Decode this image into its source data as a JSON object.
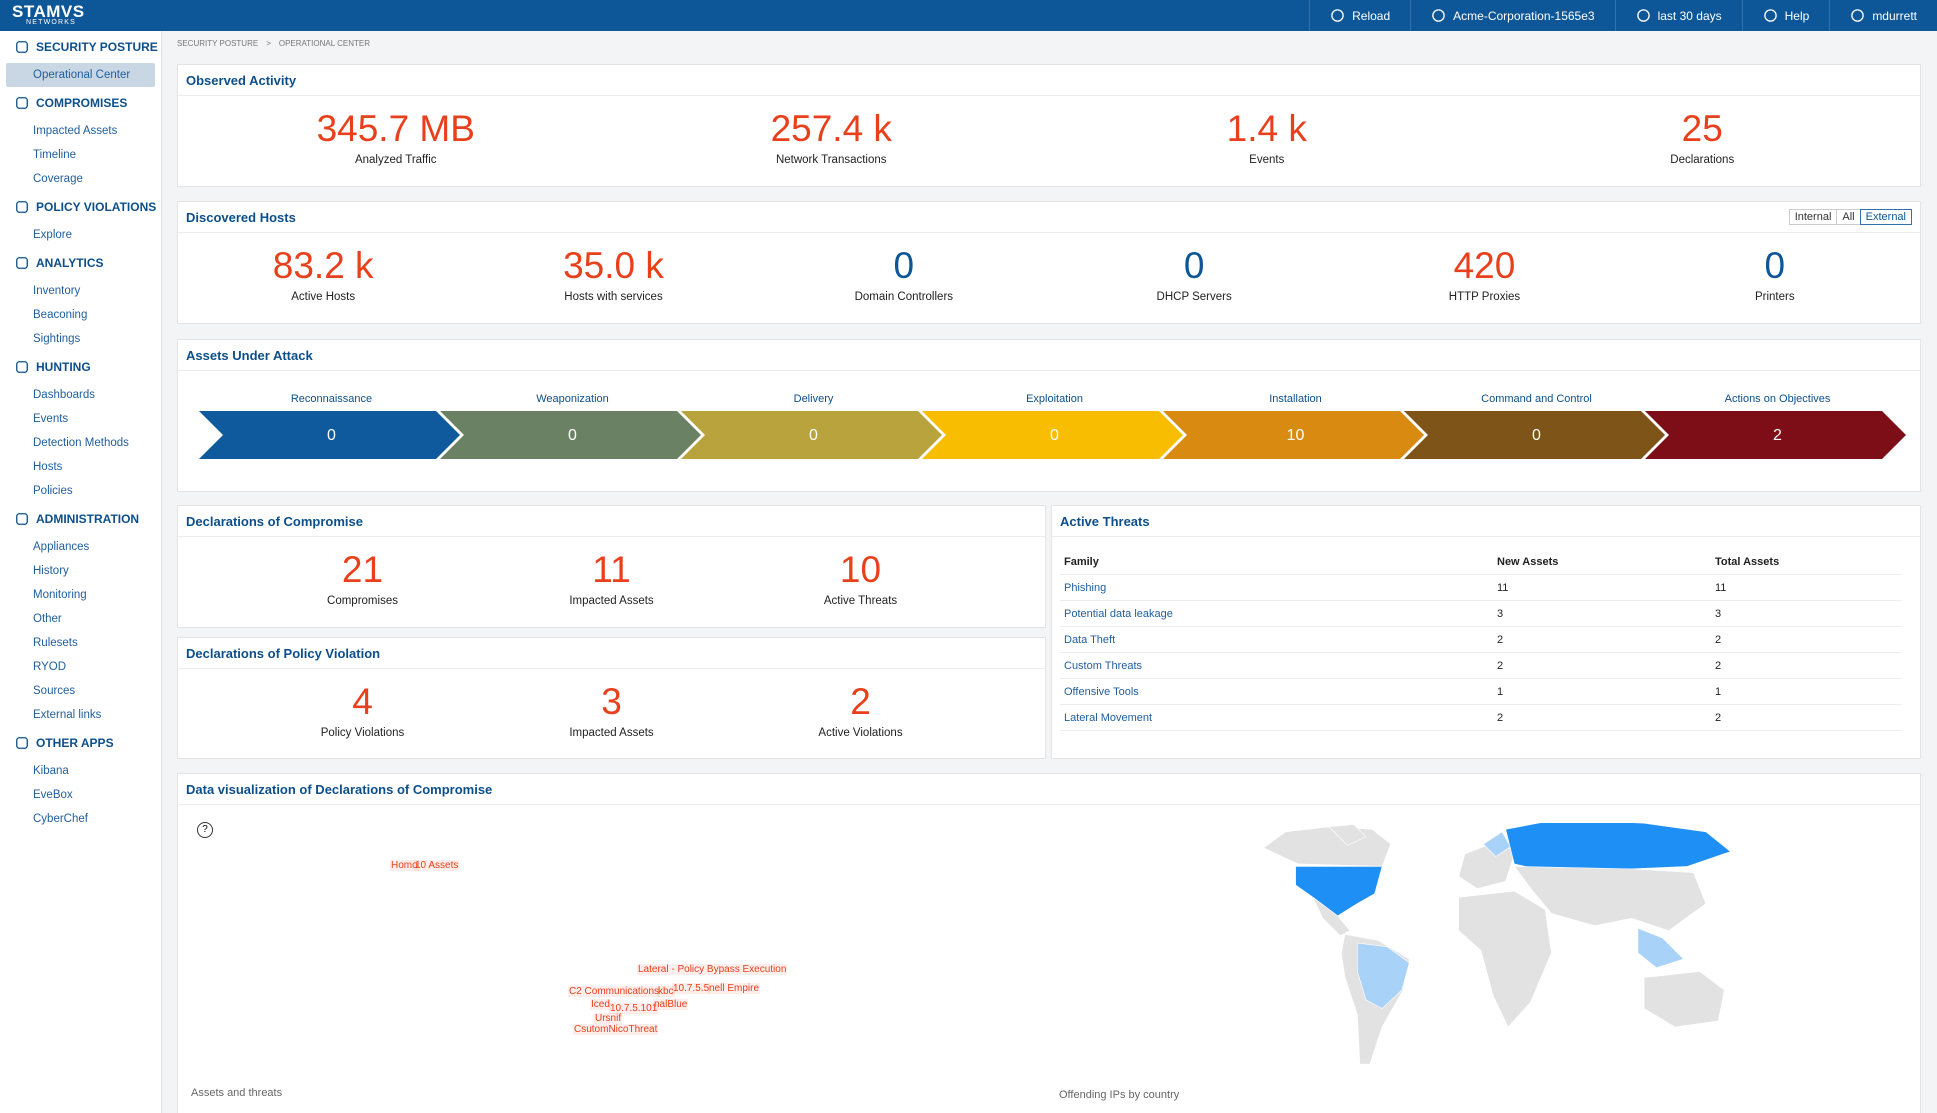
{
  "topbar": {
    "logo": "STAMVS",
    "logo_sub": "NETWORKS",
    "items": [
      "Reload",
      "Acme-Corporation-1565e3",
      "last 30 days",
      "Help",
      "mdurrett"
    ]
  },
  "sidebar": {
    "sections": [
      {
        "title": "SECURITY POSTURE",
        "links": [
          "Operational Center"
        ]
      },
      {
        "title": "COMPROMISES",
        "links": [
          "Impacted Assets",
          "Timeline",
          "Coverage"
        ]
      },
      {
        "title": "POLICY VIOLATIONS",
        "links": [
          "Explore"
        ]
      },
      {
        "title": "ANALYTICS",
        "links": [
          "Inventory",
          "Beaconing",
          "Sightings"
        ]
      },
      {
        "title": "HUNTING",
        "links": [
          "Dashboards",
          "Events",
          "Detection Methods",
          "Hosts",
          "Policies"
        ]
      },
      {
        "title": "ADMINISTRATION",
        "links": [
          "Appliances",
          "History",
          "Monitoring",
          "Other",
          "Rulesets",
          "RYOD",
          "Sources",
          "External links"
        ]
      },
      {
        "title": "OTHER APPS",
        "links": [
          "Kibana",
          "EveBox",
          "CyberChef"
        ]
      }
    ]
  },
  "breadcrumb": [
    "SECURITY POSTURE",
    ">",
    "OPERATIONAL CENTER"
  ],
  "observed_activity": {
    "title": "Observed Activity",
    "stats": [
      {
        "value": "345.7 MB",
        "label": "Analyzed Traffic",
        "color": "#e8401c"
      },
      {
        "value": "257.4 k",
        "label": "Network Transactions",
        "color": "#e8401c"
      },
      {
        "value": "1.4 k",
        "label": "Events",
        "color": "#e8401c"
      },
      {
        "value": "25",
        "label": "Declarations",
        "color": "#e8401c"
      }
    ]
  },
  "discovered_hosts": {
    "title": "Discovered Hosts",
    "filters": [
      "Internal",
      "All",
      "External"
    ],
    "stats": [
      {
        "value": "83.2 k",
        "label": "Active Hosts",
        "color": "#e8401c"
      },
      {
        "value": "35.0 k",
        "label": "Hosts with services",
        "color": "#e8401c"
      },
      {
        "value": "0",
        "label": "Domain Controllers",
        "color": "#0d5697"
      },
      {
        "value": "0",
        "label": "DHCP Servers",
        "color": "#0d5697"
      },
      {
        "value": "420",
        "label": "HTTP Proxies",
        "color": "#e8401c"
      },
      {
        "value": "0",
        "label": "Printers",
        "color": "#0d5697"
      }
    ]
  },
  "assets_under_attack": {
    "title": "Assets Under Attack",
    "stages": [
      {
        "name": "Reconnaissance",
        "count": 0,
        "color": "#0f5a9c"
      },
      {
        "name": "Weaponization",
        "count": 0,
        "color": "#6b8163"
      },
      {
        "name": "Delivery",
        "count": 0,
        "color": "#b9a33c"
      },
      {
        "name": "Exploitation",
        "count": 0,
        "color": "#f9bd00"
      },
      {
        "name": "Installation",
        "count": 10,
        "color": "#d98a11"
      },
      {
        "name": "Command and Control",
        "count": 0,
        "color": "#7f5418"
      },
      {
        "name": "Actions on Objectives",
        "count": 2,
        "color": "#7d0e18"
      }
    ]
  },
  "declarations_of_compromise": {
    "title": "Declarations of Compromise",
    "stats": [
      {
        "value": "21",
        "label": "Compromises",
        "color": "#e8401c"
      },
      {
        "value": "11",
        "label": "Impacted Assets",
        "color": "#e8401c"
      },
      {
        "value": "10",
        "label": "Active Threats",
        "color": "#e8401c"
      }
    ]
  },
  "declarations_of_policy_violation": {
    "title": "Declarations of Policy Violation",
    "stats": [
      {
        "value": "4",
        "label": "Policy Violations",
        "color": "#e8401c"
      },
      {
        "value": "3",
        "label": "Impacted Assets",
        "color": "#e8401c"
      },
      {
        "value": "2",
        "label": "Active Violations",
        "color": "#e8401c"
      }
    ]
  },
  "active_threats": {
    "title": "Active Threats",
    "header": [
      "Family",
      "New Assets",
      "Total Assets"
    ],
    "rows": [
      [
        "Phishing",
        "11",
        "11"
      ],
      [
        "Potential data leakage",
        "3",
        "3"
      ],
      [
        "Data Theft",
        "2",
        "2"
      ],
      [
        "Custom Threats",
        "2",
        "2"
      ],
      [
        "Offensive Tools",
        "1",
        "1"
      ],
      [
        "Lateral Movement",
        "2",
        "2"
      ]
    ]
  },
  "data_visualization": {
    "title": "Data visualization of Declarations of Compromise",
    "help": "?",
    "word_cloud": [
      "Homo",
      "10 Assets",
      "Lateral - Policy Bypass Execution",
      "C2 Communications",
      "kbc",
      "10.7.5.5",
      "nell Empire",
      "Iced",
      "nalBlue",
      "10.7.5.101",
      "Ursnif",
      "CsutomNicoThreat"
    ],
    "left_caption": "Assets and threats",
    "right_caption": "Offending IPs by country"
  }
}
